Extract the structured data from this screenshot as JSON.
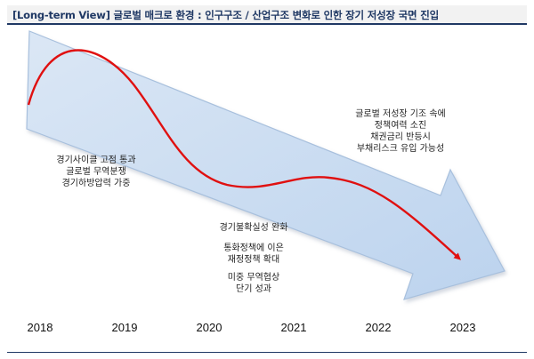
{
  "header": {
    "title": "[Long-term View] 글로벌 매크로 환경 : 인구구조 / 산업구조 변화로 인한 장기 저성장 국면 진입"
  },
  "annotations": {
    "note_2018": [
      "경기사이클 고점 통과",
      "글로벌 무역분쟁",
      "경기하방압력 가중"
    ],
    "note_2020a": [
      "경기불확실성 완화"
    ],
    "note_2020b": [
      "통화정책에 이은",
      "재정정책 확대"
    ],
    "note_2020c": [
      "미중 무역협상",
      "단기 성과"
    ],
    "note_2022": [
      "글로벌 저성장 기조 속에",
      "정책여력 소진",
      "채권금리 반등시",
      "부채리스크 유입 가능성"
    ]
  },
  "timeline": {
    "years": [
      "2018",
      "2019",
      "2020",
      "2021",
      "2022",
      "2023"
    ]
  },
  "colors": {
    "arrow_fill": "#c5d9ef",
    "arrow_stroke": "#9db6d6",
    "curve": "#e01010",
    "title_accent": "#1f3864"
  }
}
